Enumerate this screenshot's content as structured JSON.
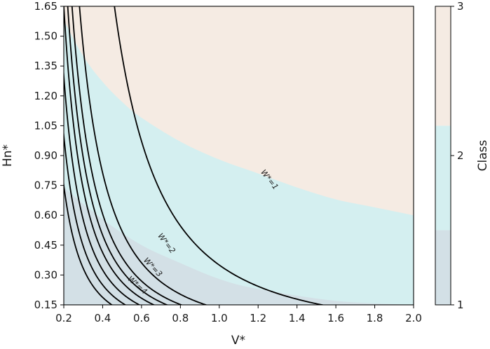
{
  "chart_data": {
    "type": "contour",
    "xlabel": "V*",
    "ylabel": "Hn*",
    "xlim": [
      0.2,
      2.0
    ],
    "ylim": [
      0.15,
      1.65
    ],
    "x_ticks": [
      "0.2",
      "0.4",
      "0.6",
      "0.8",
      "1.0",
      "1.2",
      "1.4",
      "1.6",
      "1.8",
      "2.0"
    ],
    "y_ticks": [
      "0.15",
      "0.30",
      "0.45",
      "0.60",
      "0.75",
      "0.90",
      "1.05",
      "1.20",
      "1.35",
      "1.50",
      "1.65"
    ],
    "grid": false,
    "classes": {
      "label": "Class",
      "ticks": [
        "1",
        "2",
        "3"
      ],
      "colors": [
        "#d3e0e6",
        "#d4eff0",
        "#f5ebe3"
      ],
      "boundary_1_2": {
        "x": [
          0.2,
          0.4,
          0.6,
          0.8,
          1.0,
          1.2,
          1.6,
          2.0
        ],
        "y": [
          0.74,
          0.58,
          0.45,
          0.36,
          0.28,
          0.23,
          0.17,
          0.15
        ]
      },
      "boundary_2_3": {
        "x": [
          0.2,
          0.3,
          0.4,
          0.5,
          0.6,
          0.8,
          1.0,
          1.2,
          1.4,
          1.6,
          1.8,
          2.0
        ],
        "y": [
          1.58,
          1.4,
          1.27,
          1.17,
          1.09,
          0.97,
          0.88,
          0.81,
          0.74,
          0.68,
          0.64,
          0.6
        ]
      }
    },
    "contours": [
      {
        "label": "W*=1",
        "k": 0.35,
        "x_end": 2.0
      },
      {
        "label": "W*=2",
        "k": 0.13,
        "x_end": 2.0
      },
      {
        "label": "",
        "k": 0.097,
        "x_end": 2.0
      },
      {
        "label": "W*=3",
        "k": 0.08,
        "x_end": 2.0
      },
      {
        "label": "",
        "k": 0.066,
        "x_end": 1.95
      },
      {
        "label": "W*=4",
        "k": 0.052,
        "x_end": 1.55
      },
      {
        "label": "",
        "k": 0.04,
        "x_end": 1.35
      },
      {
        "label": "",
        "k": 0.03,
        "x_end": 1.1
      }
    ],
    "contour_labels": [
      {
        "text": "W*=1",
        "x": 1.26,
        "y": 0.78
      },
      {
        "text": "W*=2",
        "x": 0.73,
        "y": 0.46
      },
      {
        "text": "W*=3",
        "x": 0.66,
        "y": 0.34
      },
      {
        "text": "W*=4",
        "x": 0.58,
        "y": 0.25
      }
    ]
  }
}
